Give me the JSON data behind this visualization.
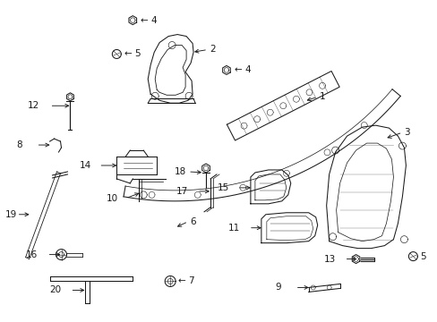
{
  "bg_color": "#ffffff",
  "line_color": "#1a1a1a",
  "lw": 0.75,
  "fig_w": 4.89,
  "fig_h": 3.6,
  "dpi": 100
}
